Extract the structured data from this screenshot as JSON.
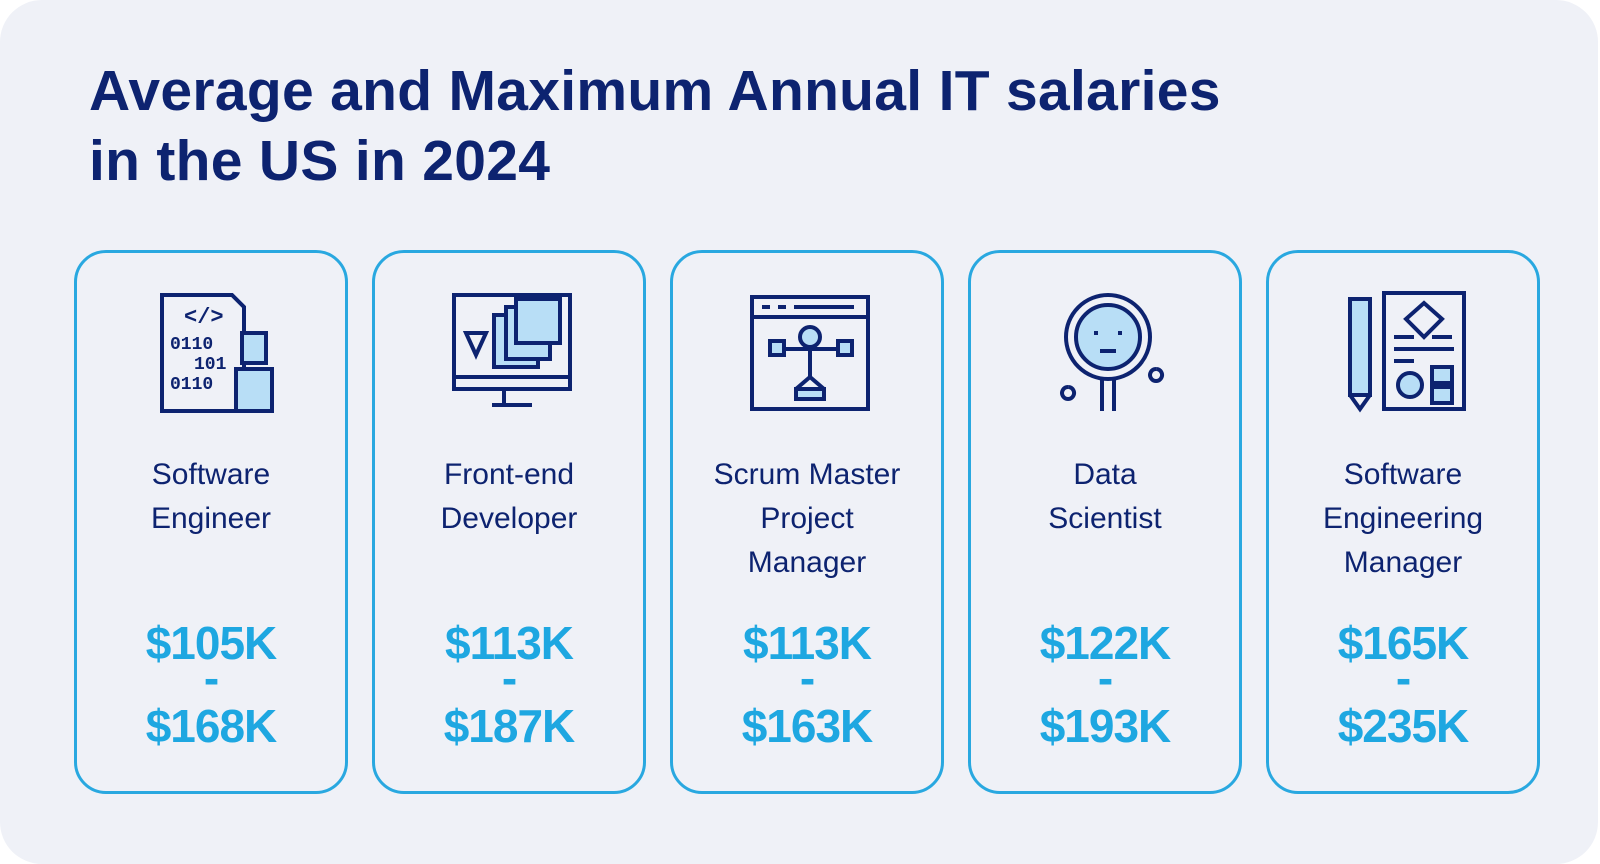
{
  "header": {
    "title_lines": [
      "Average and Maximum Annual IT salaries",
      "in the US in 2024"
    ]
  },
  "separator": "-",
  "cards": [
    {
      "role_lines": [
        "Software",
        "Engineer"
      ],
      "min": "$105K",
      "max": "$168K"
    },
    {
      "role_lines": [
        "Front-end",
        "Developer"
      ],
      "min": "$113K",
      "max": "$187K"
    },
    {
      "role_lines": [
        "Scrum Master",
        "Project",
        "Manager"
      ],
      "min": "$113K",
      "max": "$163K"
    },
    {
      "role_lines": [
        "Data",
        "Scientist"
      ],
      "min": "$122K",
      "max": "$193K"
    },
    {
      "role_lines": [
        "Software",
        "Engineering",
        "Manager"
      ],
      "min": "$165K",
      "max": "$235K"
    }
  ]
}
